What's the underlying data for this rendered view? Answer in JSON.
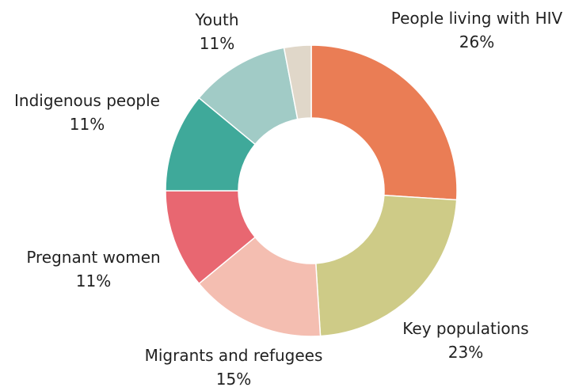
{
  "chart_data": {
    "type": "pie",
    "variant": "donut",
    "slices": [
      {
        "label": "People living with HIV",
        "value_label": "26%",
        "value": 26,
        "color": "#EA7D55"
      },
      {
        "label": "Key populations",
        "value_label": "23%",
        "value": 23,
        "color": "#CECB87"
      },
      {
        "label": "Migrants and refugees",
        "value_label": "15%",
        "value": 15,
        "color": "#F4BEB1"
      },
      {
        "label": "Pregnant women",
        "value_label": "11%",
        "value": 11,
        "color": "#E86771"
      },
      {
        "label": "Indigenous people",
        "value_label": "11%",
        "value": 11,
        "color": "#3FA99A"
      },
      {
        "label": "Youth",
        "value_label": "11%",
        "value": 11,
        "color": "#A1CBC6"
      },
      {
        "label": "",
        "value_label": "",
        "value": 3,
        "color": "#E0D7C9"
      }
    ]
  }
}
